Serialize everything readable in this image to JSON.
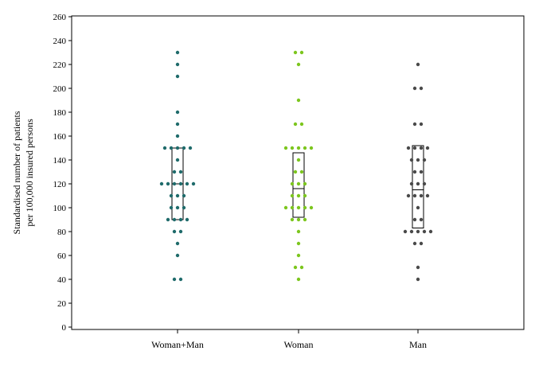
{
  "chart_data": {
    "type": "scatter",
    "subtype": "dot-strip with box",
    "title": "",
    "xlabel": "",
    "ylabel_lines": [
      "Standardised number of patients",
      "per 100,000 insured persons"
    ],
    "ylim": [
      0,
      260
    ],
    "yticks": [
      0,
      20,
      40,
      60,
      80,
      100,
      120,
      140,
      160,
      180,
      200,
      220,
      240,
      260
    ],
    "grid": false,
    "legend": "none",
    "categories": [
      "Woman+Man",
      "Woman",
      "Man"
    ],
    "series": [
      {
        "category": "Woman+Man",
        "color": "#1f6b6b",
        "values": [
          40,
          40,
          60,
          70,
          80,
          80,
          90,
          90,
          90,
          90,
          100,
          100,
          100,
          110,
          110,
          110,
          120,
          120,
          120,
          120,
          120,
          120,
          130,
          130,
          140,
          150,
          150,
          150,
          150,
          150,
          160,
          170,
          180,
          210,
          220,
          230
        ],
        "box": {
          "q1": 90,
          "median": 120,
          "q3": 150
        }
      },
      {
        "category": "Woman",
        "color": "#7cc61e",
        "values": [
          40,
          50,
          50,
          60,
          70,
          80,
          90,
          90,
          90,
          100,
          100,
          100,
          100,
          100,
          110,
          110,
          110,
          120,
          120,
          120,
          130,
          130,
          140,
          150,
          150,
          150,
          150,
          150,
          170,
          170,
          190,
          220,
          230,
          230
        ],
        "box": {
          "q1": 92,
          "median": 116,
          "q3": 146
        }
      },
      {
        "category": "Man",
        "color": "#4a4a4a",
        "values": [
          40,
          50,
          70,
          70,
          80,
          80,
          80,
          80,
          80,
          90,
          90,
          100,
          110,
          110,
          110,
          110,
          120,
          120,
          120,
          130,
          130,
          140,
          140,
          140,
          150,
          150,
          150,
          150,
          170,
          170,
          200,
          200,
          220
        ],
        "box": {
          "q1": 83,
          "median": 115,
          "q3": 152
        }
      }
    ]
  }
}
